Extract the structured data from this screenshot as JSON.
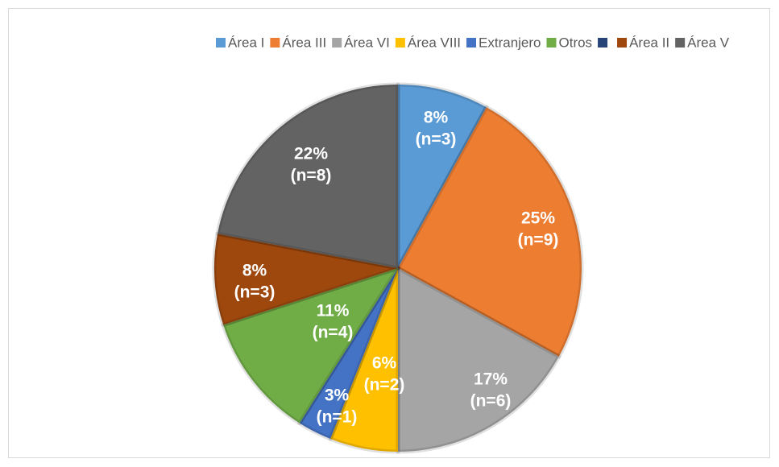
{
  "chart_data": {
    "type": "pie",
    "categories": [
      "Área I",
      "Área III",
      "Área VI",
      "Área VIII",
      "Extranjero",
      "Otros",
      null,
      "Área II",
      "Área V"
    ],
    "values": [
      8,
      25,
      17,
      6,
      3,
      11,
      0,
      8,
      22
    ],
    "value_labels": [
      "8%",
      "25%",
      "17%",
      "6%",
      "3%",
      "11%",
      null,
      "8%",
      "22%"
    ],
    "count_labels": [
      "(n=3)",
      "(n=9)",
      "(n=6)",
      "(n=2)",
      "(n=1)",
      "(n=4)",
      null,
      "(n=3)",
      "(n=8)"
    ],
    "colors": [
      "#5b9bd5",
      "#ed7d31",
      "#a5a5a5",
      "#ffc000",
      "#4472c4",
      "#70ad47",
      "#264478",
      "#9e480e",
      "#636363"
    ],
    "legend": "top"
  }
}
